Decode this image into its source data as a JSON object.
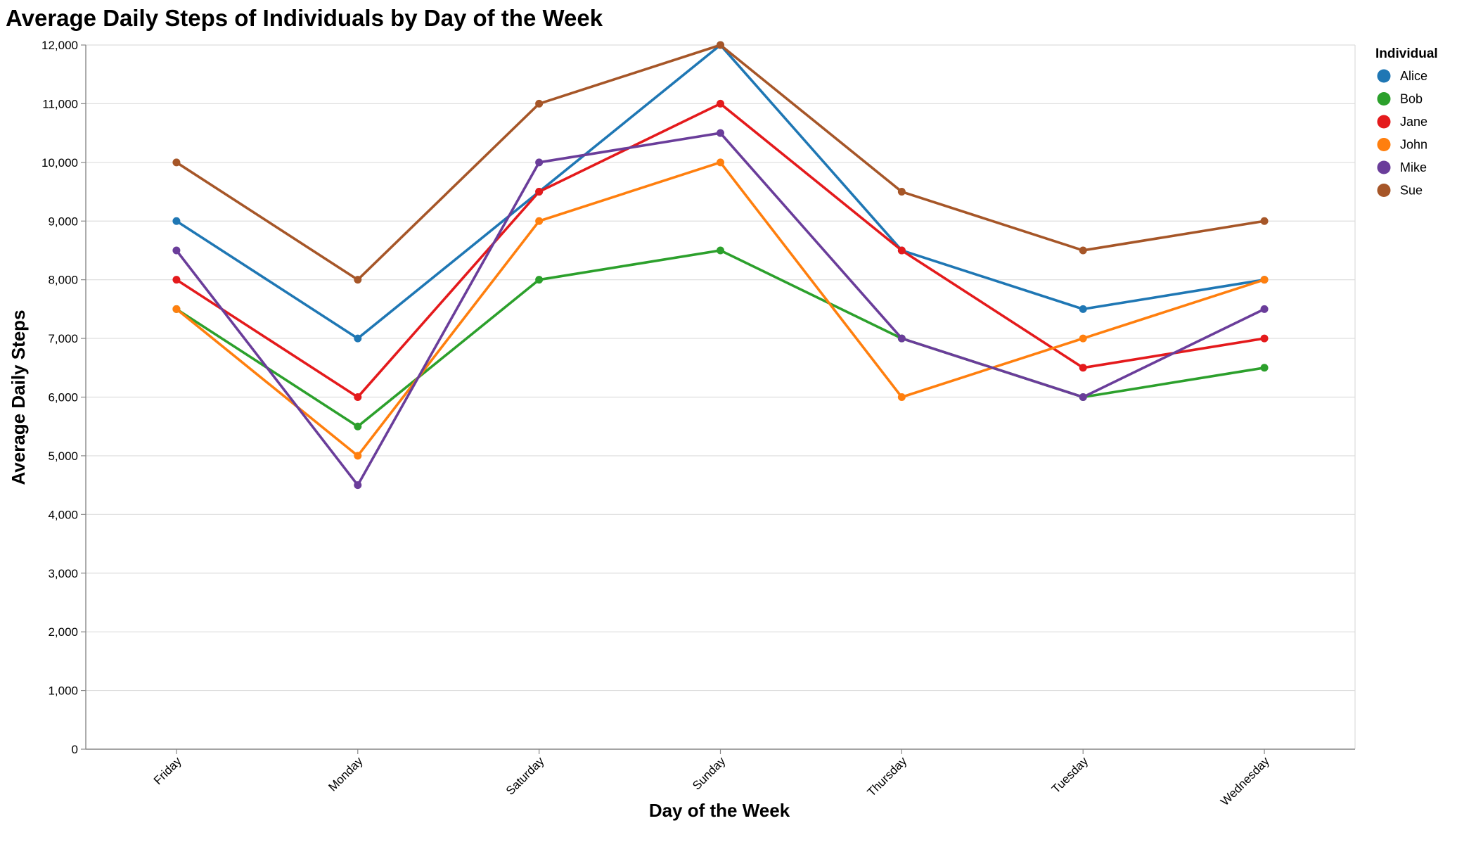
{
  "chart_data": {
    "type": "line",
    "title": "Average Daily Steps of Individuals by Day of the Week",
    "xlabel": "Day of the Week",
    "ylabel": "Average Daily Steps",
    "categories": [
      "Friday",
      "Monday",
      "Saturday",
      "Sunday",
      "Thursday",
      "Tuesday",
      "Wednesday"
    ],
    "ylim": [
      0,
      12000
    ],
    "yticks": [
      0,
      1000,
      2000,
      3000,
      4000,
      5000,
      6000,
      7000,
      8000,
      9000,
      10000,
      11000,
      12000
    ],
    "ytick_labels": [
      "0",
      "1,000",
      "2,000",
      "3,000",
      "4,000",
      "5,000",
      "6,000",
      "7,000",
      "8,000",
      "9,000",
      "10,000",
      "11,000",
      "12,000"
    ],
    "grid": true,
    "legend": {
      "title": "Individual",
      "position": "right"
    },
    "series": [
      {
        "name": "Alice",
        "color": "#1f77b4",
        "values": [
          9000,
          7000,
          9500,
          12000,
          8500,
          7500,
          8000
        ]
      },
      {
        "name": "Bob",
        "color": "#2ca02c",
        "values": [
          7500,
          5500,
          8000,
          8500,
          7000,
          6000,
          6500
        ]
      },
      {
        "name": "Jane",
        "color": "#e41a1c",
        "values": [
          8000,
          6000,
          9500,
          11000,
          8500,
          6500,
          7000
        ]
      },
      {
        "name": "John",
        "color": "#ff7f0e",
        "values": [
          7500,
          5000,
          9000,
          10000,
          6000,
          7000,
          8000
        ]
      },
      {
        "name": "Mike",
        "color": "#6a3d9a",
        "values": [
          8500,
          4500,
          10000,
          10500,
          7000,
          6000,
          7500
        ]
      },
      {
        "name": "Sue",
        "color": "#a65628",
        "values": [
          10000,
          8000,
          11000,
          12000,
          9500,
          8500,
          9000
        ]
      }
    ]
  }
}
